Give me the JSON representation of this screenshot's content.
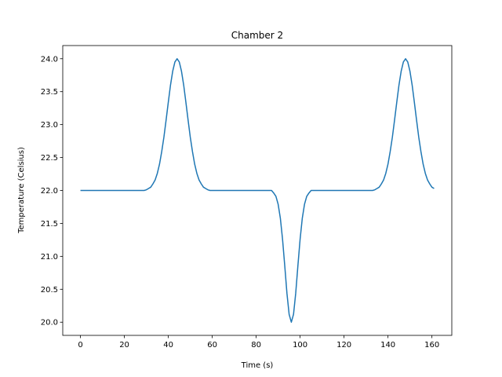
{
  "chart_data": {
    "type": "line",
    "title": "Chamber 2",
    "xlabel": "Time (s)",
    "ylabel": "Temperature (Celsius)",
    "x": [
      0,
      1,
      2,
      3,
      4,
      5,
      6,
      7,
      8,
      9,
      10,
      11,
      12,
      13,
      14,
      15,
      16,
      17,
      18,
      19,
      20,
      21,
      22,
      23,
      24,
      25,
      26,
      27,
      28,
      29,
      30,
      31,
      32,
      33,
      34,
      35,
      36,
      37,
      38,
      39,
      40,
      41,
      42,
      43,
      44,
      45,
      46,
      47,
      48,
      49,
      50,
      51,
      52,
      53,
      54,
      55,
      56,
      57,
      58,
      59,
      60,
      61,
      62,
      63,
      64,
      65,
      66,
      67,
      68,
      69,
      70,
      71,
      72,
      73,
      74,
      75,
      76,
      77,
      78,
      79,
      80,
      81,
      82,
      83,
      84,
      85,
      86,
      87,
      88,
      89,
      90,
      91,
      92,
      93,
      94,
      95,
      96,
      97,
      98,
      99,
      100,
      101,
      102,
      103,
      104,
      105,
      106,
      107,
      108,
      109,
      110,
      111,
      112,
      113,
      114,
      115,
      116,
      117,
      118,
      119,
      120,
      121,
      122,
      123,
      124,
      125,
      126,
      127,
      128,
      129,
      130,
      131,
      132,
      133,
      134,
      135,
      136,
      137,
      138,
      139,
      140,
      141,
      142,
      143,
      144,
      145,
      146,
      147,
      148,
      149,
      150,
      151,
      152,
      153,
      154,
      155,
      156,
      157,
      158,
      159,
      160,
      161
    ],
    "values": [
      22,
      22,
      22,
      22,
      22,
      22,
      22,
      22,
      22,
      22,
      22,
      22,
      22,
      22,
      22,
      22,
      22,
      22,
      22,
      22,
      22,
      22,
      22,
      22,
      22,
      22,
      22,
      22,
      22,
      22,
      22.01,
      22.03,
      22.05,
      22.1,
      22.16,
      22.26,
      22.4,
      22.59,
      22.81,
      23.07,
      23.34,
      23.6,
      23.81,
      23.95,
      24,
      23.95,
      23.81,
      23.6,
      23.34,
      23.07,
      22.81,
      22.59,
      22.4,
      22.26,
      22.16,
      22.1,
      22.05,
      22.03,
      22.01,
      22,
      22,
      22,
      22,
      22,
      22,
      22,
      22,
      22,
      22,
      22,
      22,
      22,
      22,
      22,
      22,
      22,
      22,
      22,
      22,
      22,
      22,
      22,
      22,
      22,
      22,
      22,
      22,
      22,
      21.96,
      21.91,
      21.79,
      21.58,
      21.26,
      20.86,
      20.44,
      20.12,
      20,
      20.12,
      20.44,
      20.86,
      21.26,
      21.58,
      21.79,
      21.91,
      21.96,
      22,
      22,
      22,
      22,
      22,
      22,
      22,
      22,
      22,
      22,
      22,
      22,
      22,
      22,
      22,
      22,
      22,
      22,
      22,
      22,
      22,
      22,
      22,
      22,
      22,
      22,
      22,
      22,
      22,
      22.01,
      22.03,
      22.05,
      22.1,
      22.16,
      22.26,
      22.4,
      22.59,
      22.81,
      23.07,
      23.34,
      23.6,
      23.81,
      23.95,
      24,
      23.95,
      23.81,
      23.6,
      23.34,
      23.07,
      22.81,
      22.59,
      22.4,
      22.26,
      22.16,
      22.1,
      22.05,
      22.03
    ],
    "color": "#1f77b4",
    "xlim": [
      -8.05,
      169.05
    ],
    "xticks": [
      0,
      20,
      40,
      60,
      80,
      100,
      120,
      140,
      160
    ],
    "ylim": [
      19.8,
      24.2
    ],
    "yticks": [
      {
        "value": 20,
        "label": "20.0"
      },
      {
        "value": 20.5,
        "label": "20.5"
      },
      {
        "value": 21,
        "label": "21.0"
      },
      {
        "value": 21.5,
        "label": "21.5"
      },
      {
        "value": 22,
        "label": "22.0"
      },
      {
        "value": 22.5,
        "label": "22.5"
      },
      {
        "value": 23,
        "label": "23.0"
      },
      {
        "value": 23.5,
        "label": "23.5"
      },
      {
        "value": 24,
        "label": "24.0"
      }
    ],
    "grid": false
  }
}
